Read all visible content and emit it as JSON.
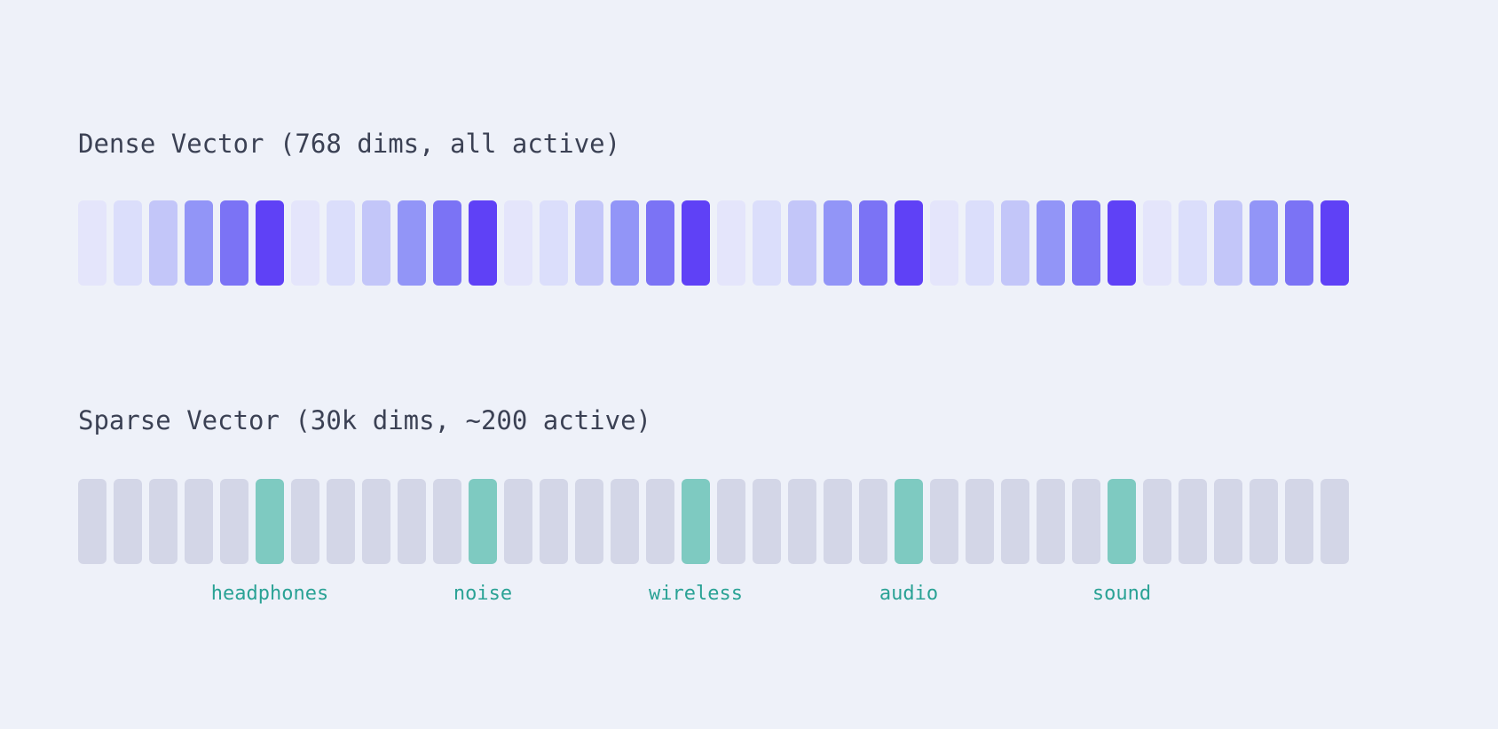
{
  "page": {
    "background_color": "#eef1f9",
    "title_color": "#3b4154"
  },
  "dense": {
    "title": "Dense Vector (768 dims, all active)",
    "cells": 36,
    "intensity_ramp": [
      "#e4e5fb",
      "#dbdefb",
      "#c3c6f9",
      "#9295f7",
      "#7b73f5",
      "#5f41f6"
    ],
    "intensities": [
      0,
      1,
      2,
      3,
      4,
      5,
      0,
      1,
      2,
      3,
      4,
      5,
      0,
      1,
      2,
      3,
      4,
      5,
      0,
      1,
      2,
      3,
      4,
      5,
      0,
      1,
      2,
      3,
      4,
      5,
      0,
      1,
      2,
      3,
      4,
      5
    ]
  },
  "sparse": {
    "title": "Sparse Vector (30k dims, ~200 active)",
    "cells": 36,
    "inactive_color": "#d3d6e7",
    "active_color": "#7ecac1",
    "label_color": "#2aa295",
    "active": [
      {
        "index": 5,
        "label": "headphones"
      },
      {
        "index": 11,
        "label": "noise"
      },
      {
        "index": 17,
        "label": "wireless"
      },
      {
        "index": 23,
        "label": "audio"
      },
      {
        "index": 29,
        "label": "sound"
      }
    ]
  }
}
